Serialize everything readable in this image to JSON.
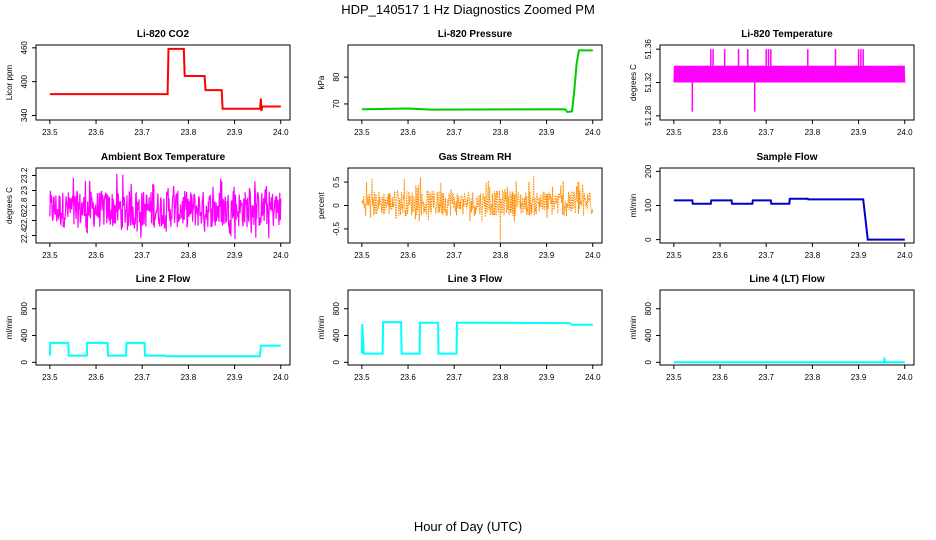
{
  "figure": {
    "title": "HDP_140517  1 Hz Diagnostics Zoomed PM",
    "xlabel": "Hour of Day (UTC)"
  },
  "chart_data": [
    {
      "type": "line",
      "title": "Li-820 CO2",
      "ylabel": "Licor ppm",
      "color": "#ff0000",
      "xlim": [
        23.47,
        24.02
      ],
      "ylim": [
        332,
        465
      ],
      "xticks": [
        "23.5",
        "23.6",
        "23.7",
        "23.8",
        "23.9",
        "24.0"
      ],
      "yticks": [
        340,
        400,
        460
      ],
      "x": [
        23.5,
        23.755,
        23.757,
        23.79,
        23.792,
        23.835,
        23.837,
        23.872,
        23.874,
        23.955,
        23.957,
        23.958,
        23.96,
        24.0
      ],
      "y": [
        378,
        378,
        458,
        458,
        410,
        410,
        385,
        385,
        352,
        352,
        370,
        348,
        356,
        356
      ]
    },
    {
      "type": "line",
      "title": "Li-820 Pressure",
      "ylabel": "kPa",
      "color": "#00cc00",
      "xlim": [
        23.47,
        24.02
      ],
      "ylim": [
        64,
        92
      ],
      "xticks": [
        "23.5",
        "23.6",
        "23.7",
        "23.8",
        "23.9",
        "24.0"
      ],
      "yticks": [
        70,
        80
      ],
      "x": [
        23.5,
        23.6,
        23.65,
        23.94,
        23.945,
        23.955,
        23.96,
        23.965,
        23.97,
        24.0
      ],
      "y": [
        68,
        68.3,
        67.9,
        68,
        67,
        67.2,
        75,
        85,
        90,
        90
      ]
    },
    {
      "type": "line",
      "title": "Li-820 Temperature",
      "ylabel": "degrees C",
      "color": "#ff00ff",
      "xlim": [
        23.47,
        24.02
      ],
      "ylim": [
        51.275,
        51.365
      ],
      "xticks": [
        "23.5",
        "23.6",
        "23.7",
        "23.8",
        "23.9",
        "24.0"
      ],
      "yticks": [
        51.28,
        51.32,
        51.36
      ],
      "base_values": [
        51.32,
        51.34
      ],
      "spikes_up": [
        23.58,
        23.585,
        23.61,
        23.64,
        23.66,
        23.7,
        23.705,
        23.71,
        23.79,
        23.85,
        23.9,
        23.905,
        23.91
      ],
      "spike_up_value": 51.36,
      "spikes_down": [
        23.54,
        23.675
      ],
      "spike_down_value": 51.285
    },
    {
      "type": "line",
      "title": "Ambient Box Temperature",
      "ylabel": "degrees C",
      "color": "#ff00ff",
      "xlim": [
        23.47,
        24.02
      ],
      "ylim": [
        22.3,
        23.3
      ],
      "xticks": [
        "23.5",
        "23.6",
        "23.7",
        "23.8",
        "23.9",
        "24.0"
      ],
      "yticks": [
        22.4,
        22.6,
        22.8,
        23,
        23.2
      ],
      "mean": 22.75,
      "noise_range": [
        22.33,
        23.23
      ]
    },
    {
      "type": "line",
      "title": "Gas Stream RH",
      "ylabel": "percent",
      "color": "#ff8c00",
      "xlim": [
        23.47,
        24.02
      ],
      "ylim": [
        -0.8,
        0.8
      ],
      "xticks": [
        "23.5",
        "23.6",
        "23.7",
        "23.8",
        "23.9",
        "24.0"
      ],
      "yticks": [
        -0.5,
        0,
        0.5
      ],
      "mean": 0.05,
      "noise_range": [
        -0.35,
        0.65
      ],
      "dip": {
        "x": 23.8,
        "y": -0.78
      }
    },
    {
      "type": "line",
      "title": "Sample Flow",
      "ylabel": "ml/min",
      "color": "#0000cc",
      "xlim": [
        23.47,
        24.02
      ],
      "ylim": [
        -10,
        210
      ],
      "xticks": [
        "23.5",
        "23.6",
        "23.7",
        "23.8",
        "23.9",
        "24.0"
      ],
      "yticks": [
        0,
        100,
        200
      ],
      "x": [
        23.5,
        23.54,
        23.541,
        23.58,
        23.581,
        23.625,
        23.626,
        23.67,
        23.671,
        23.71,
        23.711,
        23.75,
        23.751,
        23.79,
        23.791,
        23.91,
        23.92,
        24.0
      ],
      "y": [
        115,
        115,
        105,
        105,
        115,
        115,
        105,
        105,
        115,
        115,
        105,
        105,
        120,
        120,
        118,
        118,
        0,
        0
      ]
    },
    {
      "type": "line",
      "title": "Line 2 Flow",
      "ylabel": "ml/min",
      "color": "#00ffff",
      "xlim": [
        23.47,
        24.02
      ],
      "ylim": [
        -40,
        1080
      ],
      "xticks": [
        "23.5",
        "23.6",
        "23.7",
        "23.8",
        "23.9",
        "24.0"
      ],
      "yticks": [
        0,
        400,
        800
      ],
      "x": [
        23.5,
        23.501,
        23.54,
        23.541,
        23.58,
        23.581,
        23.625,
        23.626,
        23.665,
        23.666,
        23.705,
        23.706,
        23.75,
        23.751,
        23.955,
        23.957,
        24.0
      ],
      "y": [
        100,
        290,
        290,
        100,
        100,
        290,
        290,
        100,
        100,
        290,
        290,
        100,
        100,
        90,
        90,
        250,
        250
      ]
    },
    {
      "type": "line",
      "title": "Line 3 Flow",
      "ylabel": "ml/min",
      "color": "#00ffff",
      "xlim": [
        23.47,
        24.02
      ],
      "ylim": [
        -40,
        1080
      ],
      "xticks": [
        "23.5",
        "23.6",
        "23.7",
        "23.8",
        "23.9",
        "24.0"
      ],
      "yticks": [
        0,
        400,
        800
      ],
      "x": [
        23.5,
        23.501,
        23.504,
        23.545,
        23.546,
        23.585,
        23.586,
        23.625,
        23.626,
        23.665,
        23.666,
        23.705,
        23.706,
        23.75,
        23.95,
        23.955,
        24.0
      ],
      "y": [
        130,
        570,
        130,
        130,
        600,
        600,
        130,
        130,
        590,
        590,
        130,
        130,
        590,
        590,
        585,
        560,
        560
      ]
    },
    {
      "type": "line",
      "title": "Line 4 (LT) Flow",
      "ylabel": "ml/min",
      "color": "#00ffff",
      "xlim": [
        23.47,
        24.02
      ],
      "ylim": [
        -40,
        1080
      ],
      "xticks": [
        "23.5",
        "23.6",
        "23.7",
        "23.8",
        "23.9",
        "24.0"
      ],
      "yticks": [
        0,
        400,
        800
      ],
      "x": [
        23.5,
        23.955,
        23.956,
        23.957,
        23.958,
        24.0
      ],
      "y": [
        0,
        0,
        70,
        0,
        0,
        0
      ]
    }
  ]
}
